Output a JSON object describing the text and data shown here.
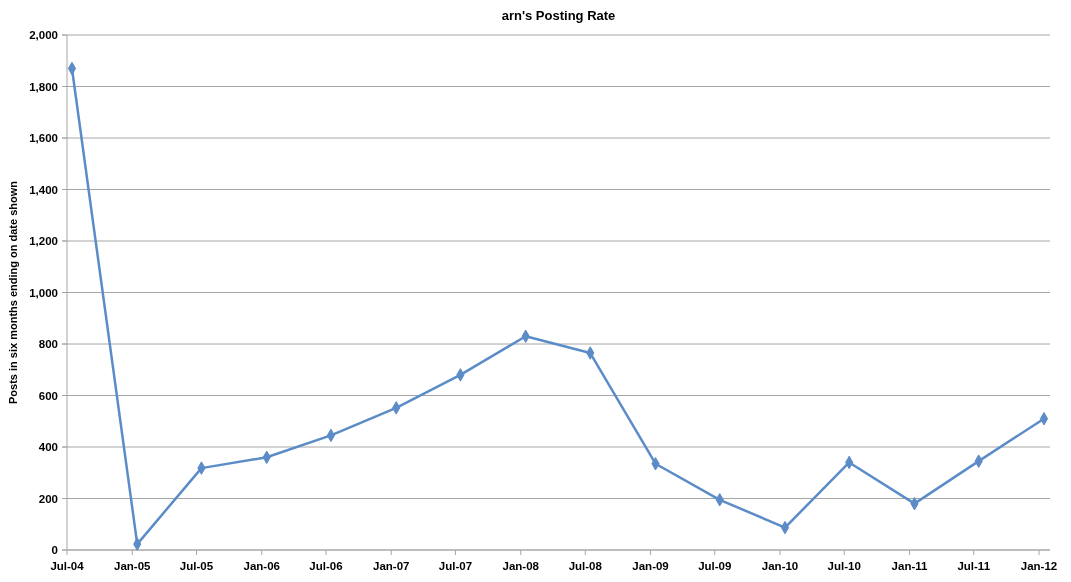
{
  "chart_data": {
    "type": "line",
    "title": "arn's Posting Rate",
    "ylabel": "Posts in six months ending on date shown",
    "x": [
      "2004-07-15",
      "2005-01-15",
      "2005-07-15",
      "2006-01-15",
      "2006-07-15",
      "2007-01-15",
      "2007-07-15",
      "2008-01-15",
      "2008-07-15",
      "2009-01-15",
      "2009-07-15",
      "2010-01-15",
      "2010-07-15",
      "2011-01-15",
      "2011-07-15",
      "2012-01-15"
    ],
    "series": [
      {
        "color": "#5b8cc8",
        "values": [
          1870,
          23,
          318,
          360,
          445,
          552,
          680,
          830,
          765,
          335,
          195,
          87,
          340,
          180,
          345,
          510
        ]
      }
    ],
    "xlim": [
      "2004-07-01",
      "2012-02-01"
    ],
    "xticks": [
      {
        "value": "2004-07-01",
        "label": "Jul-04"
      },
      {
        "value": "2005-01-01",
        "label": "Jan-05"
      },
      {
        "value": "2005-07-01",
        "label": "Jul-05"
      },
      {
        "value": "2006-01-01",
        "label": "Jan-06"
      },
      {
        "value": "2006-07-01",
        "label": "Jul-06"
      },
      {
        "value": "2007-01-01",
        "label": "Jan-07"
      },
      {
        "value": "2007-07-01",
        "label": "Jul-07"
      },
      {
        "value": "2008-01-01",
        "label": "Jan-08"
      },
      {
        "value": "2008-07-01",
        "label": "Jul-08"
      },
      {
        "value": "2009-01-01",
        "label": "Jan-09"
      },
      {
        "value": "2009-07-01",
        "label": "Jul-09"
      },
      {
        "value": "2010-01-01",
        "label": "Jan-10"
      },
      {
        "value": "2010-07-01",
        "label": "Jul-10"
      },
      {
        "value": "2011-01-01",
        "label": "Jan-11"
      },
      {
        "value": "2011-07-01",
        "label": "Jul-11"
      },
      {
        "value": "2012-01-01",
        "label": "Jan-12"
      }
    ],
    "ylim": [
      0,
      2000
    ],
    "yticks": [
      0,
      200,
      400,
      600,
      800,
      {
        "value": 1000,
        "label": "1,000"
      },
      {
        "value": 1200,
        "label": "1,200"
      },
      {
        "value": 1400,
        "label": "1,400"
      },
      {
        "value": 1600,
        "label": "1,600"
      },
      {
        "value": 1800,
        "label": "1,800"
      },
      {
        "value": 2000,
        "label": "2,000"
      }
    ],
    "grid": "y",
    "marker": "diamond",
    "line_style": "solid"
  }
}
